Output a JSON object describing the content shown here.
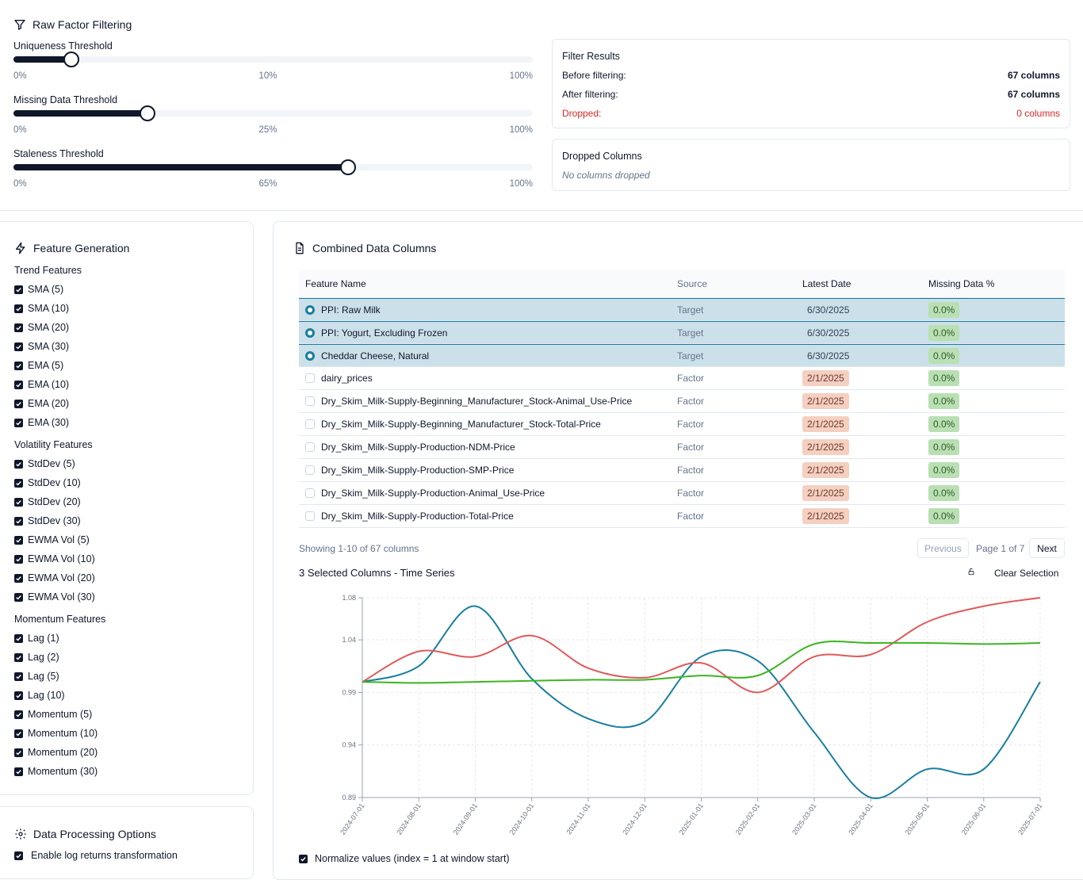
{
  "filtering": {
    "title": "Raw Factor Filtering",
    "sliders": [
      {
        "label": "Uniqueness Threshold",
        "min": "0%",
        "mid": "10%",
        "max": "100%",
        "value": 10
      },
      {
        "label": "Missing Data Threshold",
        "min": "0%",
        "mid": "25%",
        "max": "100%",
        "value": 25
      },
      {
        "label": "Staleness Threshold",
        "min": "0%",
        "mid": "65%",
        "max": "100%",
        "value": 65
      }
    ],
    "results": {
      "title": "Filter Results",
      "before_label": "Before filtering:",
      "before_value": "67 columns",
      "after_label": "After filtering:",
      "after_value": "67 columns",
      "dropped_label": "Dropped:",
      "dropped_value": "0 columns"
    },
    "dropped_columns": {
      "title": "Dropped Columns",
      "empty": "No columns dropped"
    }
  },
  "feature_generation": {
    "title": "Feature Generation",
    "groups": [
      {
        "title": "Trend Features",
        "items": [
          "SMA (5)",
          "SMA (10)",
          "SMA (20)",
          "SMA (30)",
          "EMA (5)",
          "EMA (10)",
          "EMA (20)",
          "EMA (30)"
        ]
      },
      {
        "title": "Volatility Features",
        "items": [
          "StdDev (5)",
          "StdDev (10)",
          "StdDev (20)",
          "StdDev (30)",
          "EWMA Vol (5)",
          "EWMA Vol (10)",
          "EWMA Vol (20)",
          "EWMA Vol (30)"
        ]
      },
      {
        "title": "Momentum Features",
        "items": [
          "Lag (1)",
          "Lag (2)",
          "Lag (5)",
          "Lag (10)",
          "Momentum (5)",
          "Momentum (10)",
          "Momentum (20)",
          "Momentum (30)"
        ]
      }
    ]
  },
  "processing": {
    "title": "Data Processing Options",
    "log_returns": "Enable log returns transformation"
  },
  "combined": {
    "title": "Combined Data Columns",
    "headers": {
      "name": "Feature Name",
      "source": "Source",
      "date": "Latest Date",
      "missing": "Missing Data %"
    },
    "rows": [
      {
        "name": "PPI: Raw Milk",
        "source": "Target",
        "date": "6/30/2025",
        "missing": "0.0%",
        "selected": true
      },
      {
        "name": "PPI: Yogurt, Excluding Frozen",
        "source": "Target",
        "date": "6/30/2025",
        "missing": "0.0%",
        "selected": true
      },
      {
        "name": "Cheddar Cheese, Natural",
        "source": "Target",
        "date": "6/30/2025",
        "missing": "0.0%",
        "selected": true
      },
      {
        "name": "dairy_prices",
        "source": "Factor",
        "date": "2/1/2025",
        "missing": "0.0%",
        "selected": false
      },
      {
        "name": "Dry_Skim_Milk-Supply-Beginning_Manufacturer_Stock-Animal_Use-Price",
        "source": "Factor",
        "date": "2/1/2025",
        "missing": "0.0%",
        "selected": false
      },
      {
        "name": "Dry_Skim_Milk-Supply-Beginning_Manufacturer_Stock-Total-Price",
        "source": "Factor",
        "date": "2/1/2025",
        "missing": "0.0%",
        "selected": false
      },
      {
        "name": "Dry_Skim_Milk-Supply-Production-NDM-Price",
        "source": "Factor",
        "date": "2/1/2025",
        "missing": "0.0%",
        "selected": false
      },
      {
        "name": "Dry_Skim_Milk-Supply-Production-SMP-Price",
        "source": "Factor",
        "date": "2/1/2025",
        "missing": "0.0%",
        "selected": false
      },
      {
        "name": "Dry_Skim_Milk-Supply-Production-Animal_Use-Price",
        "source": "Factor",
        "date": "2/1/2025",
        "missing": "0.0%",
        "selected": false
      },
      {
        "name": "Dry_Skim_Milk-Supply-Production-Total-Price",
        "source": "Factor",
        "date": "2/1/2025",
        "missing": "0.0%",
        "selected": false
      }
    ],
    "showing": "Showing 1-10 of 67 columns",
    "prev": "Previous",
    "page": "Page 1 of 7",
    "next": "Next",
    "ts_title": "3 Selected Columns - Time Series",
    "clear": "Clear Selection",
    "normalize": "Normalize values (index = 1 at window start)"
  },
  "colors": {
    "teal": "#1a7ea0",
    "red": "#e05a5a",
    "green": "#3cb521",
    "dark": "#0f172a"
  },
  "chart_data": {
    "type": "line",
    "title": "3 Selected Columns - Time Series",
    "x": [
      "2024-07-01",
      "2024-08-01",
      "2024-09-01",
      "2024-10-01",
      "2024-11-01",
      "2024-12-01",
      "2025-01-01",
      "2025-02-01",
      "2025-03-01",
      "2025-04-01",
      "2025-05-01",
      "2025-06-01",
      "2025-07-01"
    ],
    "ylim": [
      0.89,
      1.08
    ],
    "yticks": [
      0.89,
      0.94,
      0.99,
      1.04,
      1.08
    ],
    "grid": true,
    "series": [
      {
        "name": "PPI: Raw Milk",
        "color": "#1a7ea0",
        "values": [
          1.0,
          1.015,
          1.072,
          1.003,
          0.965,
          0.962,
          1.024,
          1.02,
          0.952,
          0.89,
          0.917,
          0.917,
          1.0
        ]
      },
      {
        "name": "PPI: Yogurt, Excluding Frozen",
        "color": "#e05a5a",
        "values": [
          1.0,
          1.029,
          1.024,
          1.044,
          1.013,
          1.004,
          1.018,
          0.99,
          1.024,
          1.026,
          1.057,
          1.072,
          1.08
        ]
      },
      {
        "name": "Cheddar Cheese, Natural",
        "color": "#3cb521",
        "values": [
          1.0,
          0.999,
          1.0,
          1.001,
          1.002,
          1.002,
          1.006,
          1.006,
          1.036,
          1.037,
          1.037,
          1.036,
          1.037
        ]
      }
    ]
  }
}
